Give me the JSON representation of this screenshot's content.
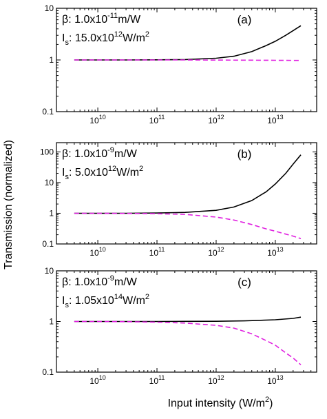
{
  "chart_data": {
    "type": "line",
    "shared_xlabel": {
      "main": "Input intensity (W/m",
      "sup": "2",
      "tail": ")"
    },
    "shared_ylabel": "Transmission (normalized)",
    "x_scale": "log",
    "xlim": [
      2000000000.0,
      50000000000000.0
    ],
    "x_ticks": [
      {
        "value": 10000000000.0,
        "base": "10",
        "exp": "10"
      },
      {
        "value": 100000000000.0,
        "base": "10",
        "exp": "11"
      },
      {
        "value": 1000000000000.0,
        "base": "10",
        "exp": "12"
      },
      {
        "value": 10000000000000.0,
        "base": "10",
        "exp": "13"
      }
    ],
    "y_scale": "log",
    "colors": {
      "solid": "#000000",
      "dashed": "#e020e0"
    },
    "panels": [
      {
        "tag": "(a)",
        "beta": {
          "lead": "β: 1.0x10",
          "exp": "-11",
          "unit": "m/W"
        },
        "is": {
          "lead": "I",
          "sub": "s",
          "mid": ": 15.0x10",
          "exp": "12",
          "unit": "W/m",
          "uexp": "2"
        },
        "ylim": [
          0.1,
          10
        ],
        "y_ticks": [
          {
            "value": 0.1,
            "label": "0.1"
          },
          {
            "value": 1,
            "label": "1"
          },
          {
            "value": 10,
            "label": "10"
          }
        ],
        "series": [
          {
            "style": "solid",
            "x": [
              4000000000.0,
              10000000000.0,
              30000000000.0,
              100000000000.0,
              300000000000.0,
              1000000000000.0,
              2000000000000.0,
              4000000000000.0,
              7000000000000.0,
              10000000000000.0,
              15000000000000.0,
              20000000000000.0,
              27000000000000.0
            ],
            "y": [
              1,
              1,
              1,
              1.005,
              1.02,
              1.08,
              1.18,
              1.45,
              1.9,
              2.3,
              3.0,
              3.7,
              4.6
            ]
          },
          {
            "style": "dashed",
            "x": [
              4000000000.0,
              10000000000.0,
              30000000000.0,
              100000000000.0,
              300000000000.0,
              1000000000000.0,
              3000000000000.0,
              10000000000000.0,
              27000000000000.0
            ],
            "y": [
              1,
              1,
              1,
              1,
              1,
              0.995,
              0.99,
              0.985,
              0.98
            ]
          }
        ]
      },
      {
        "tag": "(b)",
        "beta": {
          "lead": "β: 1.0x10",
          "exp": "-9",
          "unit": "m/W"
        },
        "is": {
          "lead": "I",
          "sub": "s",
          "mid": ": 5.0x10",
          "exp": "12",
          "unit": "W/m",
          "uexp": "2"
        },
        "ylim": [
          0.1,
          200
        ],
        "y_ticks": [
          {
            "value": 0.1,
            "label": "0.1"
          },
          {
            "value": 1,
            "label": "1"
          },
          {
            "value": 10,
            "label": "10"
          },
          {
            "value": 100,
            "label": "100"
          }
        ],
        "series": [
          {
            "style": "solid",
            "x": [
              4000000000.0,
              10000000000.0,
              30000000000.0,
              100000000000.0,
              300000000000.0,
              1000000000000.0,
              2000000000000.0,
              4000000000000.0,
              7000000000000.0,
              10000000000000.0,
              15000000000000.0,
              20000000000000.0,
              27000000000000.0
            ],
            "y": [
              1,
              1,
              1,
              1.02,
              1.07,
              1.25,
              1.6,
              2.6,
              5,
              9,
              20,
              40,
              80
            ]
          },
          {
            "style": "dashed",
            "x": [
              4000000000.0,
              10000000000.0,
              30000000000.0,
              100000000000.0,
              300000000000.0,
              1000000000000.0,
              2000000000000.0,
              4000000000000.0,
              7000000000000.0,
              10000000000000.0,
              15000000000000.0,
              20000000000000.0,
              27000000000000.0
            ],
            "y": [
              1,
              1,
              0.99,
              0.97,
              0.92,
              0.75,
              0.6,
              0.43,
              0.31,
              0.26,
              0.21,
              0.18,
              0.15
            ]
          }
        ]
      },
      {
        "tag": "(c)",
        "beta": {
          "lead": "β: 1.0x10",
          "exp": "-9",
          "unit": "m/W"
        },
        "is": {
          "lead": "I",
          "sub": "s",
          "mid": ": 1.05x10",
          "exp": "14",
          "unit": "W/m",
          "uexp": "2"
        },
        "ylim": [
          0.1,
          10
        ],
        "y_ticks": [
          {
            "value": 0.1,
            "label": "0.1"
          },
          {
            "value": 1,
            "label": "1"
          },
          {
            "value": 10,
            "label": "10"
          }
        ],
        "series": [
          {
            "style": "solid",
            "x": [
              4000000000.0,
              10000000000.0,
              30000000000.0,
              100000000000.0,
              300000000000.0,
              1000000000000.0,
              3000000000000.0,
              10000000000000.0,
              20000000000000.0,
              27000000000000.0
            ],
            "y": [
              1,
              1,
              1,
              1,
              1.005,
              1.01,
              1.03,
              1.08,
              1.15,
              1.22
            ]
          },
          {
            "style": "dashed",
            "x": [
              4000000000.0,
              10000000000.0,
              30000000000.0,
              100000000000.0,
              300000000000.0,
              1000000000000.0,
              2000000000000.0,
              4000000000000.0,
              7000000000000.0,
              10000000000000.0,
              15000000000000.0,
              20000000000000.0,
              27000000000000.0
            ],
            "y": [
              1,
              1,
              0.99,
              0.97,
              0.93,
              0.84,
              0.74,
              0.57,
              0.42,
              0.34,
              0.24,
              0.19,
              0.14
            ]
          }
        ]
      }
    ]
  }
}
